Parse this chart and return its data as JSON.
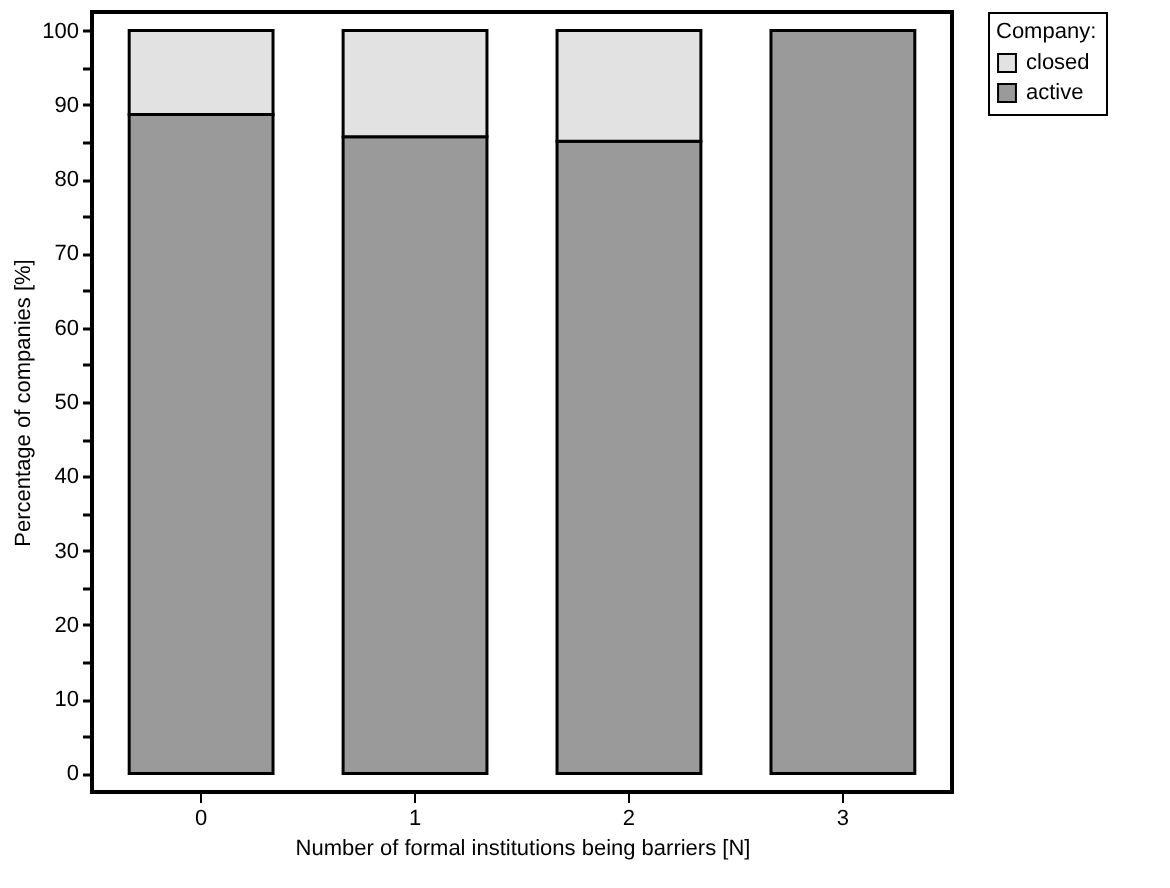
{
  "chart_data": {
    "type": "bar",
    "stacked": true,
    "xlabel": "Number of formal institutions being barriers [N]",
    "ylabel": "Percentage of companies [%]",
    "categories": [
      "0",
      "1",
      "2",
      "3"
    ],
    "series": [
      {
        "name": "active",
        "color": "#9a9a9a",
        "values": [
          88.7,
          85.7,
          85.1,
          100
        ]
      },
      {
        "name": "closed",
        "color": "#e2e2e2",
        "values": [
          11.3,
          14.3,
          14.9,
          null
        ]
      }
    ],
    "legend_title": "Company:",
    "legend": "right",
    "ylim": [
      -2.5,
      102.5
    ],
    "yticks": [
      0,
      {
        "value": 5,
        "label": null
      },
      10,
      {
        "value": 15,
        "label": null
      },
      20,
      {
        "value": 25,
        "label": null
      },
      30,
      {
        "value": 35,
        "label": null
      },
      40,
      {
        "value": 45,
        "label": null
      },
      50,
      {
        "value": 55,
        "label": null
      },
      60,
      {
        "value": 65,
        "label": null
      },
      70,
      {
        "value": 75,
        "label": null
      },
      80,
      {
        "value": 85,
        "label": null
      },
      90,
      {
        "value": 95,
        "label": null
      },
      100
    ],
    "grid": false
  }
}
